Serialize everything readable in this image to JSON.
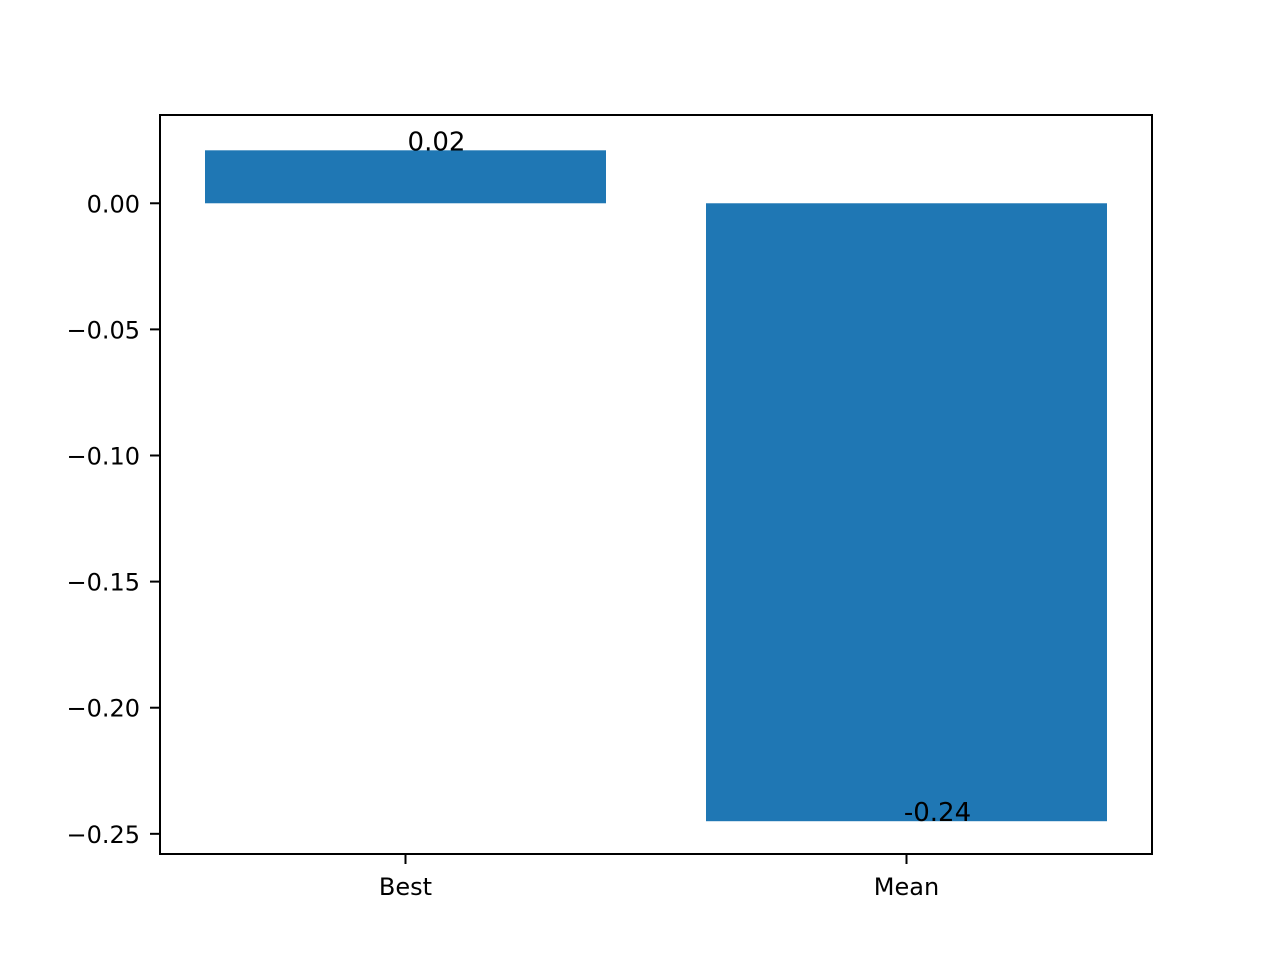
{
  "chart_data": {
    "type": "bar",
    "categories": [
      "Best",
      "Mean"
    ],
    "values": [
      0.021,
      -0.245
    ],
    "value_labels": [
      "0.02",
      "-0.24"
    ],
    "title": "",
    "xlabel": "",
    "ylabel": "",
    "ylim": [
      -0.258,
      0.035
    ],
    "yticks": [
      0.0,
      -0.05,
      -0.1,
      -0.15,
      -0.2,
      -0.25
    ],
    "ytick_labels": [
      "0.00",
      "−0.05",
      "−0.10",
      "−0.15",
      "−0.20",
      "−0.25"
    ],
    "grid": false,
    "legend": "none",
    "bar_color": "#1f77b4"
  }
}
